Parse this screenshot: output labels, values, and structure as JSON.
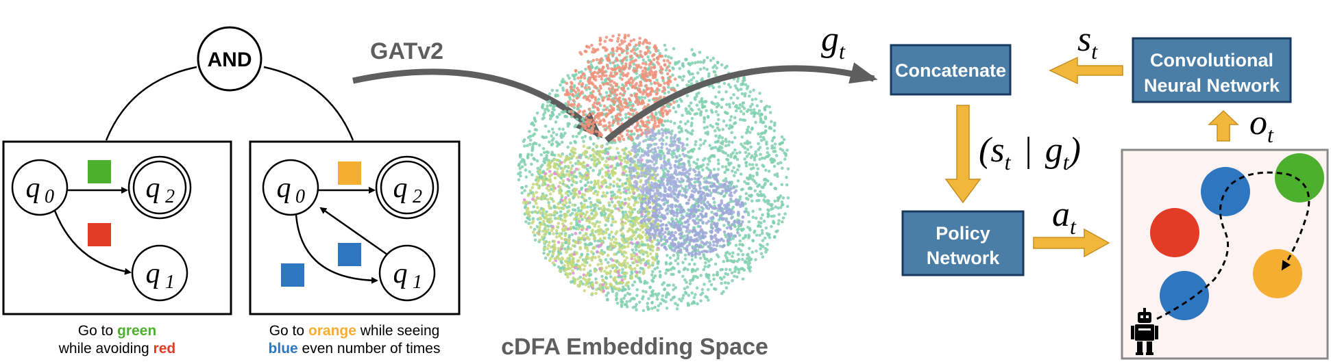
{
  "and_node": {
    "label": "AND"
  },
  "dfa_left": {
    "states": {
      "q0": "q",
      "q0_sub": "0",
      "q1": "q",
      "q1_sub": "1",
      "q2": "q",
      "q2_sub": "2"
    },
    "caption_line1_prefix": "Go to ",
    "caption_line1_color": "green",
    "caption_line2_prefix": "while avoiding ",
    "caption_line2_color": "red"
  },
  "dfa_right": {
    "states": {
      "q0": "q",
      "q0_sub": "0",
      "q1": "q",
      "q1_sub": "1",
      "q2": "q",
      "q2_sub": "2"
    },
    "caption_line1_prefix": "Go to ",
    "caption_line1_color": "orange",
    "caption_line1_suffix": " while seeing",
    "caption_line2_color": "blue",
    "caption_line2_suffix": " even number of times"
  },
  "gnn_label": "GATv2",
  "embedding_label": "cDFA Embedding Space",
  "g_label": {
    "base": "g",
    "sub": "t"
  },
  "concatenate_label": "Concatenate",
  "cnn_label": {
    "line1": "Convolutional",
    "line2": "Neural Network"
  },
  "s_label": {
    "base": "s",
    "sub": "t"
  },
  "o_label": {
    "base": "o",
    "sub": "t"
  },
  "state_goal_label": {
    "open": "(",
    "s": "s",
    "s_sub": "t",
    "bar": "|",
    "g": "g",
    "g_sub": "t",
    "close": ")"
  },
  "policy_label": {
    "line1": "Policy",
    "line2": "Network"
  },
  "a_label": {
    "base": "a",
    "sub": "t"
  },
  "colors": {
    "green": "#4caf2e",
    "red": "#e23b26",
    "orange": "#f4ae32",
    "blue": "#2f76c0",
    "box_fill": "#4b7ea6",
    "box_stroke": "#173a5e",
    "arrow_gold": "#f0b73b",
    "arrow_gray": "#5e5e5e",
    "env_bg": "#fdf3f3"
  }
}
